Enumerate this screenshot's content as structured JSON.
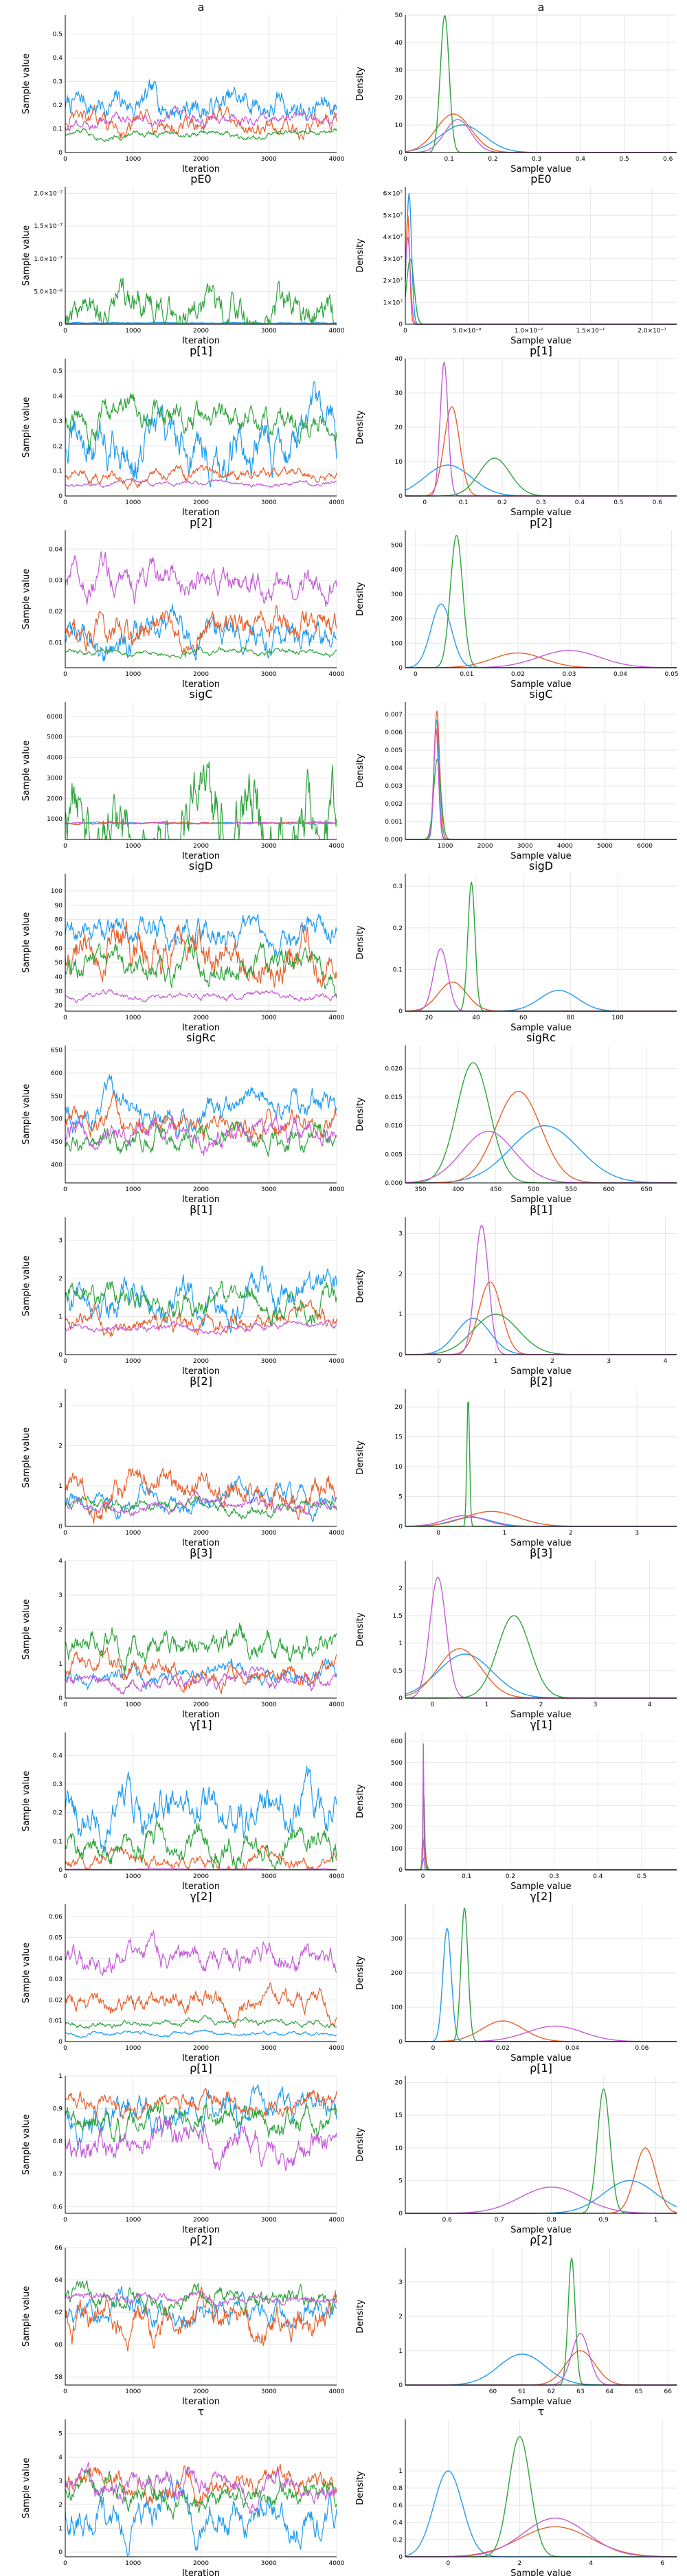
{
  "colors": [
    "#1f9bf0",
    "#e8602b",
    "#2fa33c",
    "#c45bd6"
  ],
  "labels": {
    "trace_x": "Iteration",
    "trace_y": "Sample value",
    "dens_x": "Sample value",
    "dens_y": "Density"
  },
  "chart_data": [
    {
      "param": "a",
      "type": "line",
      "trace_ylim": [
        0,
        0.58
      ],
      "trace_yticks": [
        0.0,
        0.1,
        0.2,
        0.3,
        0.4,
        0.5
      ],
      "dens_xlim": [
        0,
        0.62
      ],
      "dens_xticks": [
        0.0,
        0.1,
        0.2,
        0.3,
        0.4,
        0.5,
        0.6
      ],
      "dens_ylim": [
        0,
        50
      ],
      "dens_yticks": [
        0,
        10,
        20,
        30,
        40,
        50
      ],
      "series": [
        {
          "level": 0.2,
          "spread": 0.12,
          "mode": 0.13,
          "width": 0.05,
          "peak": 10
        },
        {
          "level": 0.12,
          "spread": 0.08,
          "mode": 0.11,
          "width": 0.04,
          "peak": 14
        },
        {
          "level": 0.08,
          "spread": 0.03,
          "mode": 0.09,
          "width": 0.01,
          "peak": 50
        },
        {
          "level": 0.13,
          "spread": 0.05,
          "mode": 0.12,
          "width": 0.03,
          "peak": 12
        }
      ]
    },
    {
      "param": "pE0",
      "type": "line",
      "trace_ylim": [
        0,
        2.1e-07
      ],
      "trace_yticks": [
        0,
        5e-08,
        1e-07,
        1.5e-07,
        2e-07
      ],
      "trace_ytick_labels": [
        "0",
        "5.0×10⁻⁸",
        "1.0×10⁻⁷",
        "1.5×10⁻⁷",
        "2.0×10⁻⁷"
      ],
      "dens_xlim": [
        0,
        2.2e-07
      ],
      "dens_xticks": [
        0,
        5e-08,
        1e-07,
        1.5e-07,
        2e-07
      ],
      "dens_xtick_labels": [
        "0",
        "5.0×10⁻⁸",
        "1.0×10⁻⁷",
        "1.5×10⁻⁷",
        "2.0×10⁻⁷"
      ],
      "dens_ylim": [
        0,
        63000000.0
      ],
      "dens_yticks": [
        0,
        10000000.0,
        20000000.0,
        30000000.0,
        40000000.0,
        50000000.0,
        60000000.0
      ],
      "dens_ytick_labels": [
        "0",
        "1×10⁷",
        "2×10⁷",
        "3×10⁷",
        "4×10⁷",
        "5×10⁷",
        "6×10⁷"
      ],
      "series": [
        {
          "level": 2e-09,
          "spread": 1e-09,
          "mode": 3e-09,
          "width": 2e-09,
          "peak": 60000000.0
        },
        {
          "level": 1e-09,
          "spread": 5e-10,
          "mode": 2e-09,
          "width": 1.5e-09,
          "peak": 50000000.0
        },
        {
          "level": 2e-08,
          "spread": 6e-08,
          "mode": 4e-09,
          "width": 3e-09,
          "peak": 30000000.0
        },
        {
          "level": 1e-09,
          "spread": 5e-10,
          "mode": 2e-09,
          "width": 2e-09,
          "peak": 40000000.0
        }
      ]
    },
    {
      "param": "p[1]",
      "type": "line",
      "trace_ylim": [
        0,
        0.55
      ],
      "trace_yticks": [
        0.0,
        0.1,
        0.2,
        0.3,
        0.4,
        0.5
      ],
      "dens_xlim": [
        -0.05,
        0.65
      ],
      "dens_xticks": [
        0.0,
        0.1,
        0.2,
        0.3,
        0.4,
        0.5,
        0.6
      ],
      "dens_ylim": [
        0,
        40
      ],
      "dens_yticks": [
        0,
        10,
        20,
        30,
        40
      ],
      "series": [
        {
          "level": 0.2,
          "spread": 0.2,
          "mode": 0.06,
          "width": 0.06,
          "peak": 9
        },
        {
          "level": 0.08,
          "spread": 0.05,
          "mode": 0.07,
          "width": 0.02,
          "peak": 26
        },
        {
          "level": 0.3,
          "spread": 0.12,
          "mode": 0.18,
          "width": 0.04,
          "peak": 11
        },
        {
          "level": 0.05,
          "spread": 0.02,
          "mode": 0.05,
          "width": 0.01,
          "peak": 39
        }
      ]
    },
    {
      "param": "p[2]",
      "type": "line",
      "trace_ylim": [
        0.002,
        0.046
      ],
      "trace_yticks": [
        0.01,
        0.02,
        0.03,
        0.04
      ],
      "dens_xlim": [
        -0.002,
        0.051
      ],
      "dens_xticks": [
        0.0,
        0.01,
        0.02,
        0.03,
        0.04,
        0.05
      ],
      "dens_ylim": [
        0,
        560
      ],
      "dens_yticks": [
        0,
        100,
        200,
        300,
        400,
        500
      ],
      "series": [
        {
          "level": 0.012,
          "spread": 0.01,
          "mode": 0.005,
          "width": 0.002,
          "peak": 260
        },
        {
          "level": 0.014,
          "spread": 0.01,
          "mode": 0.02,
          "width": 0.005,
          "peak": 60
        },
        {
          "level": 0.007,
          "spread": 0.002,
          "mode": 0.008,
          "width": 0.0012,
          "peak": 540
        },
        {
          "level": 0.029,
          "spread": 0.01,
          "mode": 0.03,
          "width": 0.006,
          "peak": 70
        }
      ]
    },
    {
      "param": "sigC",
      "type": "line",
      "trace_ylim": [
        0,
        6700
      ],
      "trace_yticks": [
        1000,
        2000,
        3000,
        4000,
        5000,
        6000
      ],
      "dens_xlim": [
        0,
        6800
      ],
      "dens_xticks": [
        1000,
        2000,
        3000,
        4000,
        5000,
        6000
      ],
      "dens_ylim": [
        0,
        0.0077
      ],
      "dens_yticks": [
        0,
        0.001,
        0.002,
        0.003,
        0.004,
        0.005,
        0.006,
        0.007
      ],
      "dens_ytick_labels": [
        "0.000",
        "0.001",
        "0.002",
        "0.003",
        "0.004",
        "0.005",
        "0.006",
        "0.007"
      ],
      "series": [
        {
          "level": 780,
          "spread": 80,
          "mode": 780,
          "width": 60,
          "peak": 0.0068
        },
        {
          "level": 800,
          "spread": 90,
          "mode": 790,
          "width": 70,
          "peak": 0.0072
        },
        {
          "level": 1500,
          "spread": 4000,
          "mode": 800,
          "width": 90,
          "peak": 0.0045
        },
        {
          "level": 790,
          "spread": 70,
          "mode": 770,
          "width": 60,
          "peak": 0.0062
        }
      ]
    },
    {
      "param": "sigD",
      "type": "line",
      "trace_ylim": [
        16,
        112
      ],
      "trace_yticks": [
        20,
        30,
        40,
        50,
        60,
        70,
        80,
        90,
        100
      ],
      "dens_xlim": [
        10,
        125
      ],
      "dens_xticks": [
        20,
        40,
        60,
        80,
        100
      ],
      "dens_ylim": [
        0,
        0.33
      ],
      "dens_yticks": [
        0.0,
        0.1,
        0.2,
        0.3
      ],
      "series": [
        {
          "level": 70,
          "spread": 20,
          "mode": 75,
          "width": 8,
          "peak": 0.05
        },
        {
          "level": 55,
          "spread": 30,
          "mode": 30,
          "width": 6,
          "peak": 0.07
        },
        {
          "level": 45,
          "spread": 20,
          "mode": 38,
          "width": 1.5,
          "peak": 0.31
        },
        {
          "level": 27,
          "spread": 5,
          "mode": 25,
          "width": 3,
          "peak": 0.15
        }
      ]
    },
    {
      "param": "sigRc",
      "type": "line",
      "trace_ylim": [
        360,
        660
      ],
      "trace_yticks": [
        400,
        450,
        500,
        550,
        600,
        650
      ],
      "dens_xlim": [
        330,
        690
      ],
      "dens_xticks": [
        350,
        400,
        450,
        500,
        550,
        600,
        650
      ],
      "dens_ylim": [
        0,
        0.024
      ],
      "dens_yticks": [
        0.0,
        0.005,
        0.01,
        0.015,
        0.02
      ],
      "dens_ytick_labels": [
        "0.000",
        "0.005",
        "0.010",
        "0.015",
        "0.020"
      ],
      "series": [
        {
          "level": 520,
          "spread": 60,
          "mode": 515,
          "width": 45,
          "peak": 0.01
        },
        {
          "level": 490,
          "spread": 50,
          "mode": 480,
          "width": 30,
          "peak": 0.016
        },
        {
          "level": 450,
          "spread": 50,
          "mode": 420,
          "width": 22,
          "peak": 0.021
        },
        {
          "level": 460,
          "spread": 50,
          "mode": 440,
          "width": 35,
          "peak": 0.009
        }
      ]
    },
    {
      "param": "β[1]",
      "type": "line",
      "trace_ylim": [
        0,
        3.6
      ],
      "trace_yticks": [
        0,
        1,
        2,
        3
      ],
      "dens_xlim": [
        -0.6,
        4.2
      ],
      "dens_xticks": [
        0,
        1,
        2,
        3,
        4
      ],
      "dens_ylim": [
        0,
        3.4
      ],
      "dens_yticks": [
        0,
        1,
        2,
        3
      ],
      "series": [
        {
          "level": 1.6,
          "spread": 0.9,
          "mode": 0.6,
          "width": 0.3,
          "peak": 0.9
        },
        {
          "level": 0.9,
          "spread": 0.5,
          "mode": 0.9,
          "width": 0.2,
          "peak": 1.8
        },
        {
          "level": 1.5,
          "spread": 0.7,
          "mode": 1.0,
          "width": 0.4,
          "peak": 1.0
        },
        {
          "level": 0.7,
          "spread": 0.2,
          "mode": 0.75,
          "width": 0.12,
          "peak": 3.2
        }
      ]
    },
    {
      "param": "β[2]",
      "type": "line",
      "trace_ylim": [
        0,
        3.4
      ],
      "trace_yticks": [
        0,
        1,
        2,
        3
      ],
      "dens_xlim": [
        -0.5,
        3.6
      ],
      "dens_xticks": [
        0,
        1,
        2,
        3
      ],
      "dens_ylim": [
        0,
        23
      ],
      "dens_yticks": [
        0,
        5,
        10,
        15,
        20
      ],
      "series": [
        {
          "level": 0.6,
          "spread": 0.5,
          "mode": 0.5,
          "width": 0.3,
          "peak": 1.5
        },
        {
          "level": 0.9,
          "spread": 0.7,
          "mode": 0.8,
          "width": 0.4,
          "peak": 2.5
        },
        {
          "level": 0.5,
          "spread": 0.3,
          "mode": 0.45,
          "width": 0.02,
          "peak": 22
        },
        {
          "level": 0.5,
          "spread": 0.3,
          "mode": 0.4,
          "width": 0.3,
          "peak": 1.8
        }
      ]
    },
    {
      "param": "β[3]",
      "type": "line",
      "trace_ylim": [
        0,
        4
      ],
      "trace_yticks": [
        0,
        1,
        2,
        3,
        4
      ],
      "dens_xlim": [
        -0.5,
        4.5
      ],
      "dens_xticks": [
        0,
        1,
        2,
        3,
        4
      ],
      "dens_ylim": [
        0,
        2.5
      ],
      "dens_yticks": [
        0.0,
        0.5,
        1.0,
        1.5,
        2.0
      ],
      "series": [
        {
          "level": 0.7,
          "spread": 0.5,
          "mode": 0.6,
          "width": 0.5,
          "peak": 0.8
        },
        {
          "level": 0.8,
          "spread": 0.6,
          "mode": 0.5,
          "width": 0.4,
          "peak": 0.9
        },
        {
          "level": 1.6,
          "spread": 0.8,
          "mode": 1.5,
          "width": 0.3,
          "peak": 1.5
        },
        {
          "level": 0.5,
          "spread": 0.4,
          "mode": 0.1,
          "width": 0.15,
          "peak": 2.2
        }
      ]
    },
    {
      "param": "γ[1]",
      "type": "line",
      "trace_ylim": [
        0,
        0.48
      ],
      "trace_yticks": [
        0.0,
        0.1,
        0.2,
        0.3,
        0.4
      ],
      "dens_xlim": [
        -0.04,
        0.58
      ],
      "dens_xticks": [
        0.0,
        0.1,
        0.2,
        0.3,
        0.4,
        0.5
      ],
      "dens_ylim": [
        0,
        640
      ],
      "dens_yticks": [
        0,
        100,
        200,
        300,
        400,
        500,
        600
      ],
      "series": [
        {
          "level": 0.2,
          "spread": 0.15,
          "mode": 0.004,
          "width": 0.004,
          "peak": 60
        },
        {
          "level": 0.03,
          "spread": 0.05,
          "mode": 0.003,
          "width": 0.003,
          "peak": 150
        },
        {
          "level": 0.08,
          "spread": 0.1,
          "mode": 0.002,
          "width": 0.002,
          "peak": 400
        },
        {
          "level": 0.002,
          "spread": 0.002,
          "mode": 0.001,
          "width": 0.001,
          "peak": 620
        }
      ]
    },
    {
      "param": "γ[2]",
      "type": "line",
      "trace_ylim": [
        0,
        0.066
      ],
      "trace_yticks": [
        0.0,
        0.01,
        0.02,
        0.03,
        0.04,
        0.05,
        0.06
      ],
      "dens_xlim": [
        -0.008,
        0.07
      ],
      "dens_xticks": [
        0.0,
        0.02,
        0.04,
        0.06
      ],
      "dens_ylim": [
        0,
        400
      ],
      "dens_yticks": [
        0,
        100,
        200,
        300
      ],
      "series": [
        {
          "level": 0.004,
          "spread": 0.002,
          "mode": 0.004,
          "width": 0.0012,
          "peak": 330
        },
        {
          "level": 0.018,
          "spread": 0.01,
          "mode": 0.02,
          "width": 0.006,
          "peak": 60
        },
        {
          "level": 0.009,
          "spread": 0.003,
          "mode": 0.009,
          "width": 0.001,
          "peak": 390
        },
        {
          "level": 0.04,
          "spread": 0.012,
          "mode": 0.035,
          "width": 0.008,
          "peak": 45
        }
      ]
    },
    {
      "param": "ρ[1]",
      "type": "line",
      "trace_ylim": [
        0.58,
        1.0
      ],
      "trace_yticks": [
        0.6,
        0.7,
        0.8,
        0.9,
        1.0
      ],
      "dens_xlim": [
        0.52,
        1.04
      ],
      "dens_xticks": [
        0.6,
        0.7,
        0.8,
        0.9,
        1.0
      ],
      "dens_ylim": [
        0,
        21
      ],
      "dens_yticks": [
        0,
        5,
        10,
        15,
        20
      ],
      "series": [
        {
          "level": 0.88,
          "spread": 0.1,
          "mode": 0.95,
          "width": 0.05,
          "peak": 5
        },
        {
          "level": 0.92,
          "spread": 0.06,
          "mode": 0.98,
          "width": 0.02,
          "peak": 10
        },
        {
          "level": 0.87,
          "spread": 0.08,
          "mode": 0.9,
          "width": 0.012,
          "peak": 19
        },
        {
          "level": 0.8,
          "spread": 0.1,
          "mode": 0.8,
          "width": 0.06,
          "peak": 4
        }
      ]
    },
    {
      "param": "ρ[2]",
      "type": "line",
      "trace_ylim": [
        57.5,
        66
      ],
      "trace_yticks": [
        58,
        60,
        62,
        64,
        66
      ],
      "dens_xlim": [
        57,
        66.3
      ],
      "dens_xticks": [
        60,
        61,
        62,
        63,
        64,
        65,
        66
      ],
      "dens_ylim": [
        0,
        4
      ],
      "dens_yticks": [
        0,
        1,
        2,
        3
      ],
      "series": [
        {
          "level": 62,
          "spread": 1.5,
          "mode": 61,
          "width": 0.8,
          "peak": 0.9
        },
        {
          "level": 61.5,
          "spread": 2,
          "mode": 63,
          "width": 0.5,
          "peak": 1.0
        },
        {
          "level": 62.8,
          "spread": 1.2,
          "mode": 62.7,
          "width": 0.12,
          "peak": 3.7
        },
        {
          "level": 62.8,
          "spread": 0.6,
          "mode": 63,
          "width": 0.3,
          "peak": 1.5
        }
      ]
    },
    {
      "param": "τ",
      "type": "line",
      "trace_ylim": [
        -0.2,
        5.6
      ],
      "trace_yticks": [
        0,
        1,
        2,
        3,
        4,
        5
      ],
      "dens_xlim": [
        -1.2,
        6.4
      ],
      "dens_xticks": [
        0,
        2,
        4,
        6
      ],
      "dens_ylim": [
        0,
        1.6
      ],
      "dens_yticks": [
        0.0,
        0.2,
        0.4,
        0.6,
        0.8,
        1.0
      ],
      "series": [
        {
          "level": 1.5,
          "spread": 1.5,
          "mode": 0,
          "width": 0.4,
          "peak": 1.0
        },
        {
          "level": 2.8,
          "spread": 1,
          "mode": 3,
          "width": 1,
          "peak": 0.35
        },
        {
          "level": 2.5,
          "spread": 1,
          "mode": 2,
          "width": 0.3,
          "peak": 1.4
        },
        {
          "level": 2.8,
          "spread": 1,
          "mode": 3,
          "width": 0.9,
          "peak": 0.45
        }
      ]
    }
  ],
  "trace_xlim": [
    0,
    4000
  ],
  "trace_xticks": [
    0,
    1000,
    2000,
    3000,
    4000
  ]
}
